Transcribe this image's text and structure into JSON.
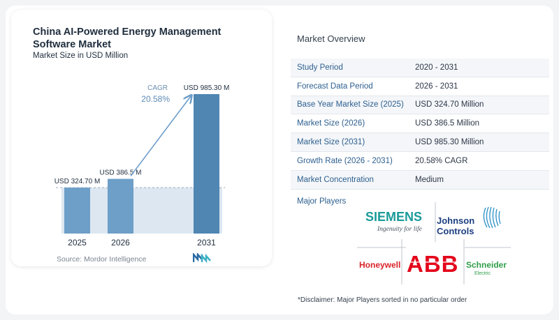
{
  "chart_data": {
    "type": "bar",
    "title": "China AI-Powered Energy Management Software Market",
    "subtitle": "Market Size in USD Million",
    "categories": [
      "2025",
      "2026",
      "2031"
    ],
    "values": [
      324.7,
      386.5,
      985.3
    ],
    "value_labels": [
      "USD 324.70 M",
      "USD 386.5 M",
      "USD 985.30 M"
    ],
    "cagr_label": "CAGR",
    "cagr_value": "20.58%",
    "source": "Source: Mordor Intelligence",
    "colors": {
      "bar_light": "#6d9fc8",
      "bar_dark": "#4f86b2",
      "band": "#dce7f1",
      "arrow": "#6b9cc9"
    }
  },
  "overview": {
    "title": "Market Overview",
    "rows": [
      {
        "key": "Study Period",
        "value": "2020 - 2031"
      },
      {
        "key": "Forecast Data Period",
        "value": "2026 - 2031"
      },
      {
        "key": "Base Year Market Size (2025)",
        "value": "USD 324.70 Million"
      },
      {
        "key": "Market Size (2026)",
        "value": "USD 386.5 Million"
      },
      {
        "key": "Market Size (2031)",
        "value": "USD 985.30 Million"
      },
      {
        "key": "Growth Rate (2026 - 2031)",
        "value": "20.58% CAGR"
      },
      {
        "key": "Market Concentration",
        "value": "Medium"
      }
    ]
  },
  "players": {
    "title": "Major Players",
    "logos": {
      "siemens": "SIEMENS",
      "siemens_tagline": "Ingenuity for life",
      "johnson_1": "Johnson",
      "johnson_2": "Controls",
      "honeywell": "Honeywell",
      "abb": "ABB",
      "schneider_1": "Schneider",
      "schneider_2": "Electric"
    }
  },
  "disclaimer": "*Disclaimer: Major Players sorted in no particular order"
}
